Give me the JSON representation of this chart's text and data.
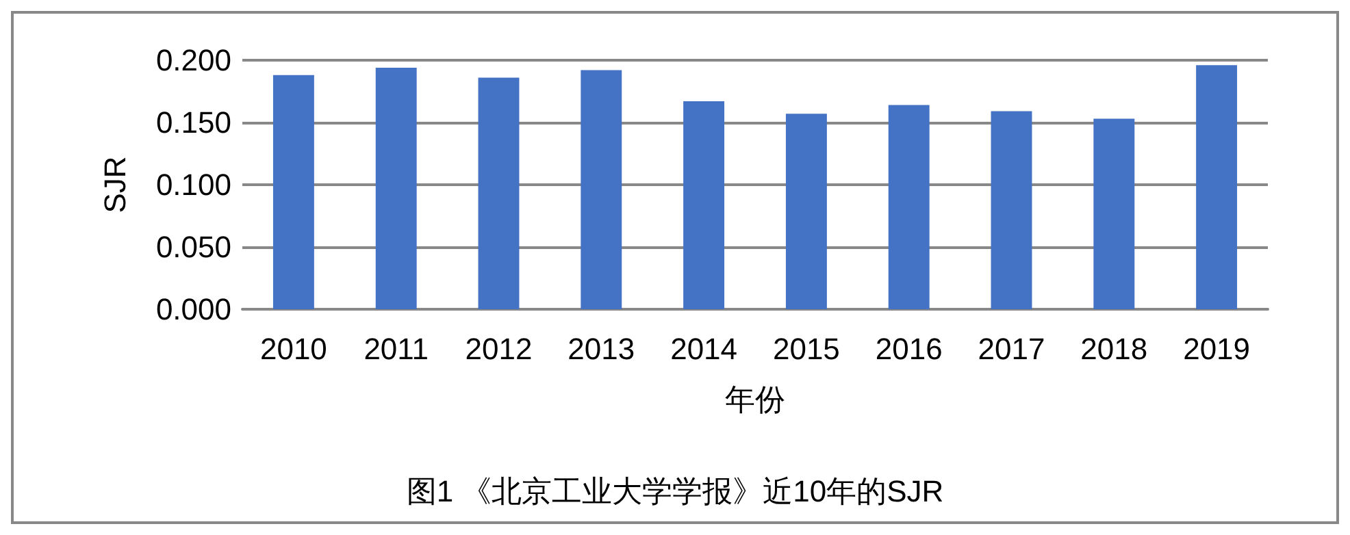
{
  "chart_data": {
    "type": "bar",
    "title": "图1 《北京工业大学学报》近10年的SJR",
    "xlabel": "年份",
    "ylabel": "SJR",
    "categories": [
      "2010",
      "2011",
      "2012",
      "2013",
      "2014",
      "2015",
      "2016",
      "2017",
      "2018",
      "2019"
    ],
    "values": [
      0.188,
      0.194,
      0.186,
      0.192,
      0.167,
      0.157,
      0.164,
      0.159,
      0.153,
      0.196
    ],
    "color": "#4472c4",
    "ylim": [
      0,
      0.2
    ],
    "yticks": [
      {
        "value": 0,
        "label": "0.000"
      },
      {
        "value": 0.05,
        "label": "0.050"
      },
      {
        "value": 0.1,
        "label": "0.100"
      },
      {
        "value": 0.15,
        "label": "0.150"
      },
      {
        "value": 0.2,
        "label": "0.200"
      }
    ],
    "grid": "y"
  }
}
